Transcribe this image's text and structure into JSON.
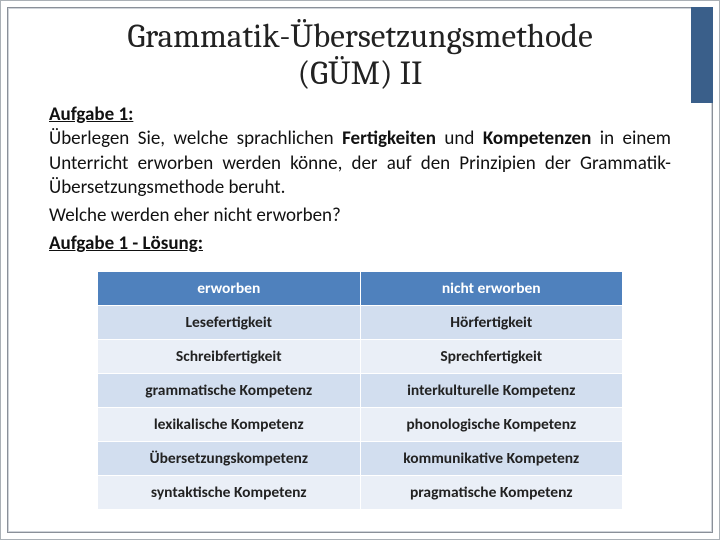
{
  "title_line1": "Grammatik-Übersetzungsmethode",
  "title_line2": "(GÜM) II",
  "task_label": "Aufgabe 1:",
  "paragraph1_pre": "Überlegen Sie, welche sprachlichen ",
  "paragraph1_b1": "Fertigkeiten",
  "paragraph1_mid": " und ",
  "paragraph1_b2": "Kompetenzen",
  "paragraph1_post": " in einem Unterricht erworben werden könne, der auf den Prinzipien der Grammatik-Übersetzungsmethode beruht.",
  "paragraph2": "Welche werden eher nicht erworben?",
  "solution_label": "Aufgabe 1 - Lösung:",
  "table": {
    "header_bg": "#4f81bd",
    "header_fg": "#ffffff",
    "row_odd_bg": "#d2deef",
    "row_even_bg": "#eaeff7",
    "columns": [
      "erworben",
      "nicht erworben"
    ],
    "rows": [
      [
        "Lesefertigkeit",
        "Hörfertigkeit"
      ],
      [
        "Schreibfertigkeit",
        "Sprechfertigkeit"
      ],
      [
        "grammatische Kompetenz",
        "interkulturelle Kompetenz"
      ],
      [
        "lexikalische Kompetenz",
        "phonologische Kompetenz"
      ],
      [
        "Übersetzungskompetenz",
        "kommunikative Kompetenz"
      ],
      [
        "syntaktische Kompetenz",
        "pragmatische Kompetenz"
      ]
    ]
  },
  "accent_color": "#3a5f8a"
}
